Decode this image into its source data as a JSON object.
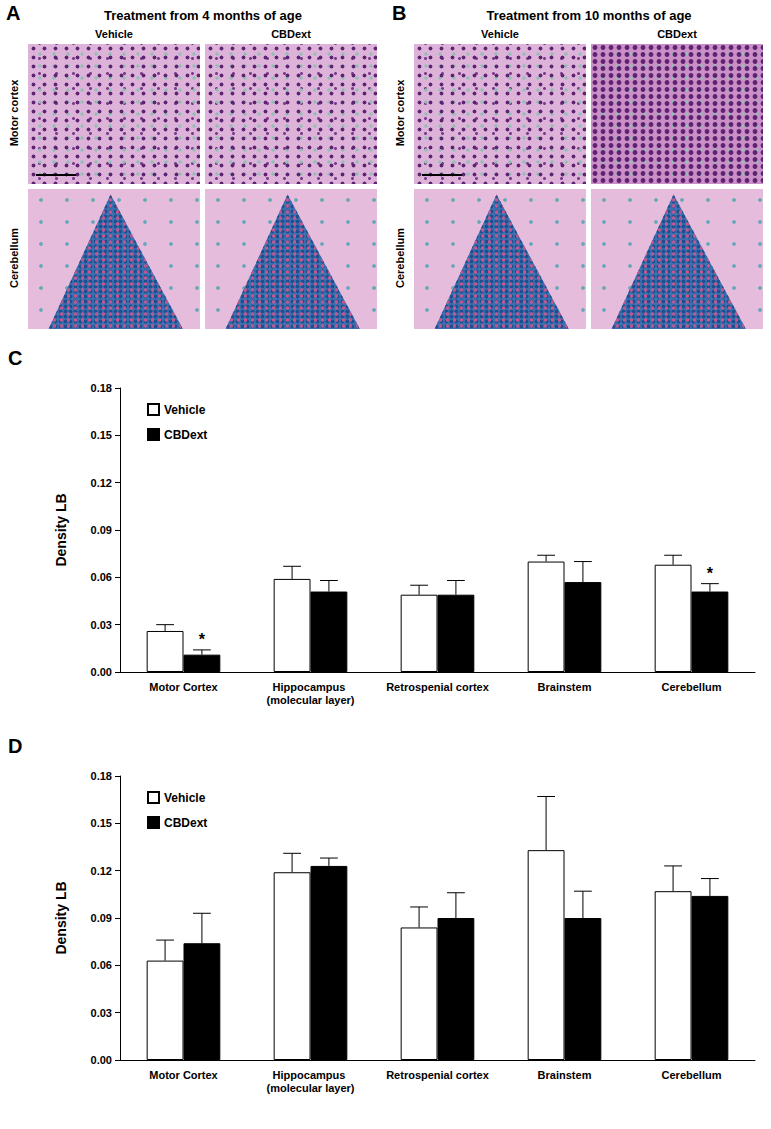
{
  "panels": [
    {
      "label": "A",
      "title": "Treatment from 4 months of age",
      "columns": [
        "Vehicle",
        "CBDext"
      ],
      "rows": [
        "Motor cortex",
        "Cerebellum"
      ]
    },
    {
      "label": "B",
      "title": "Treatment from 10 months of age",
      "columns": [
        "Vehicle",
        "CBDext"
      ],
      "rows": [
        "Motor cortex",
        "Cerebellum"
      ]
    }
  ],
  "chart_data": [
    {
      "panel": "C",
      "type": "bar",
      "y_label": "Density LB",
      "categories": [
        "Motor Cortex",
        "Hippocampus (molecular layer)",
        "Retrospenial cortex",
        "Brainstem",
        "Cerebellum"
      ],
      "series": [
        {
          "name": "Vehicle",
          "color": "#ffffff",
          "values": [
            0.026,
            0.059,
            0.049,
            0.07,
            0.068
          ],
          "errors": [
            0.004,
            0.008,
            0.006,
            0.004,
            0.006
          ]
        },
        {
          "name": "CBDext",
          "color": "#000000",
          "values": [
            0.011,
            0.051,
            0.049,
            0.057,
            0.051
          ],
          "errors": [
            0.003,
            0.007,
            0.009,
            0.013,
            0.005
          ]
        }
      ],
      "annotations": [
        {
          "series": "CBDext",
          "category": "Motor Cortex",
          "text": "*"
        },
        {
          "series": "CBDext",
          "category": "Cerebellum",
          "text": "*"
        }
      ],
      "ylim": [
        0,
        0.18
      ],
      "yticks": [
        {
          "value": 0,
          "label": "0.00"
        },
        0.03,
        0.06,
        0.09,
        0.12,
        0.15,
        0.18
      ],
      "legend": "upper left",
      "grid": false
    },
    {
      "panel": "D",
      "type": "bar",
      "y_label": "Density LB",
      "categories": [
        "Motor Cortex",
        "Hippocampus (molecular layer)",
        "Retrospenial cortex",
        "Brainstem",
        "Cerebellum"
      ],
      "series": [
        {
          "name": "Vehicle",
          "color": "#ffffff",
          "values": [
            0.063,
            0.119,
            0.084,
            0.133,
            0.107
          ],
          "errors": [
            0.013,
            0.012,
            0.013,
            0.034,
            0.016
          ]
        },
        {
          "name": "CBDext",
          "color": "#000000",
          "values": [
            0.074,
            0.123,
            0.09,
            0.09,
            0.104
          ],
          "errors": [
            0.019,
            0.005,
            0.016,
            0.017,
            0.011
          ]
        }
      ],
      "annotations": [],
      "ylim": [
        0,
        0.18
      ],
      "yticks": [
        {
          "value": 0,
          "label": "0.00"
        },
        0.03,
        0.06,
        0.09,
        0.12,
        0.15,
        0.18
      ],
      "legend": "upper left",
      "grid": false
    }
  ]
}
